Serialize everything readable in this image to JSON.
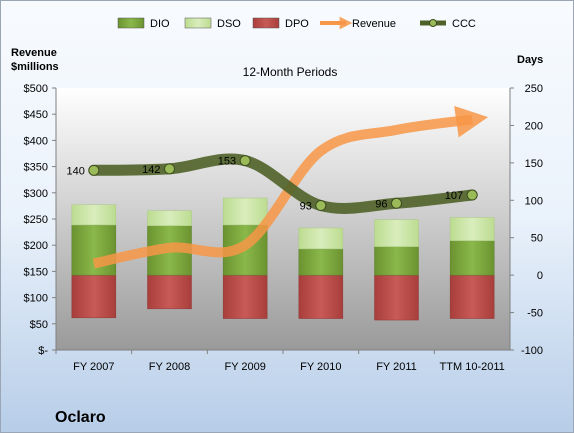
{
  "chart_data": {
    "type": "bar",
    "title": "12-Month Periods",
    "company": "Oclaro",
    "left_axis_label": [
      "Revenue",
      "$millions"
    ],
    "right_axis_label": "Days",
    "categories": [
      "FY 2007",
      "FY 2008",
      "FY 2009",
      "FY 2010",
      "FY 2011",
      "TTM 10-2011"
    ],
    "left_axis": {
      "min": 0,
      "max": 500,
      "step": 50,
      "tick_labels": [
        "$-",
        "$50",
        "$100",
        "$150",
        "$200",
        "$250",
        "$300",
        "$350",
        "$400",
        "$450",
        "$500"
      ]
    },
    "right_axis": {
      "min": -100,
      "max": 250,
      "step": 50,
      "tick_labels": [
        "-100",
        "-50",
        "0",
        "50",
        "100",
        "150",
        "200",
        "250"
      ]
    },
    "legend": [
      "DIO",
      "DSO",
      "DPO",
      "Revenue",
      "CCC"
    ],
    "legend_position": "top",
    "series": [
      {
        "name": "DIO",
        "axis": "right",
        "kind": "stacked-bar",
        "color": "#7aa23a",
        "values": [
          67,
          66,
          67,
          35,
          38,
          46
        ]
      },
      {
        "name": "DSO",
        "axis": "right",
        "kind": "stacked-bar",
        "color": "#c9e5a3",
        "values": [
          27,
          20,
          36,
          28,
          36,
          31
        ]
      },
      {
        "name": "DPO",
        "axis": "right",
        "kind": "negative-bar",
        "color": "#c0504d",
        "values": [
          -57,
          -45,
          -58,
          -58,
          -60,
          -58
        ]
      },
      {
        "name": "Revenue",
        "axis": "left",
        "kind": "line-arrow",
        "color": "#f79646",
        "values": [
          165,
          195,
          200,
          380,
          420,
          440
        ]
      },
      {
        "name": "CCC",
        "axis": "right",
        "kind": "line-markers",
        "color": "#4f6228",
        "values": [
          140,
          142,
          153,
          93,
          96,
          107
        ]
      }
    ],
    "data_labels": [
      "140",
      "142",
      "153",
      "93",
      "96",
      "107"
    ],
    "grid": false
  }
}
